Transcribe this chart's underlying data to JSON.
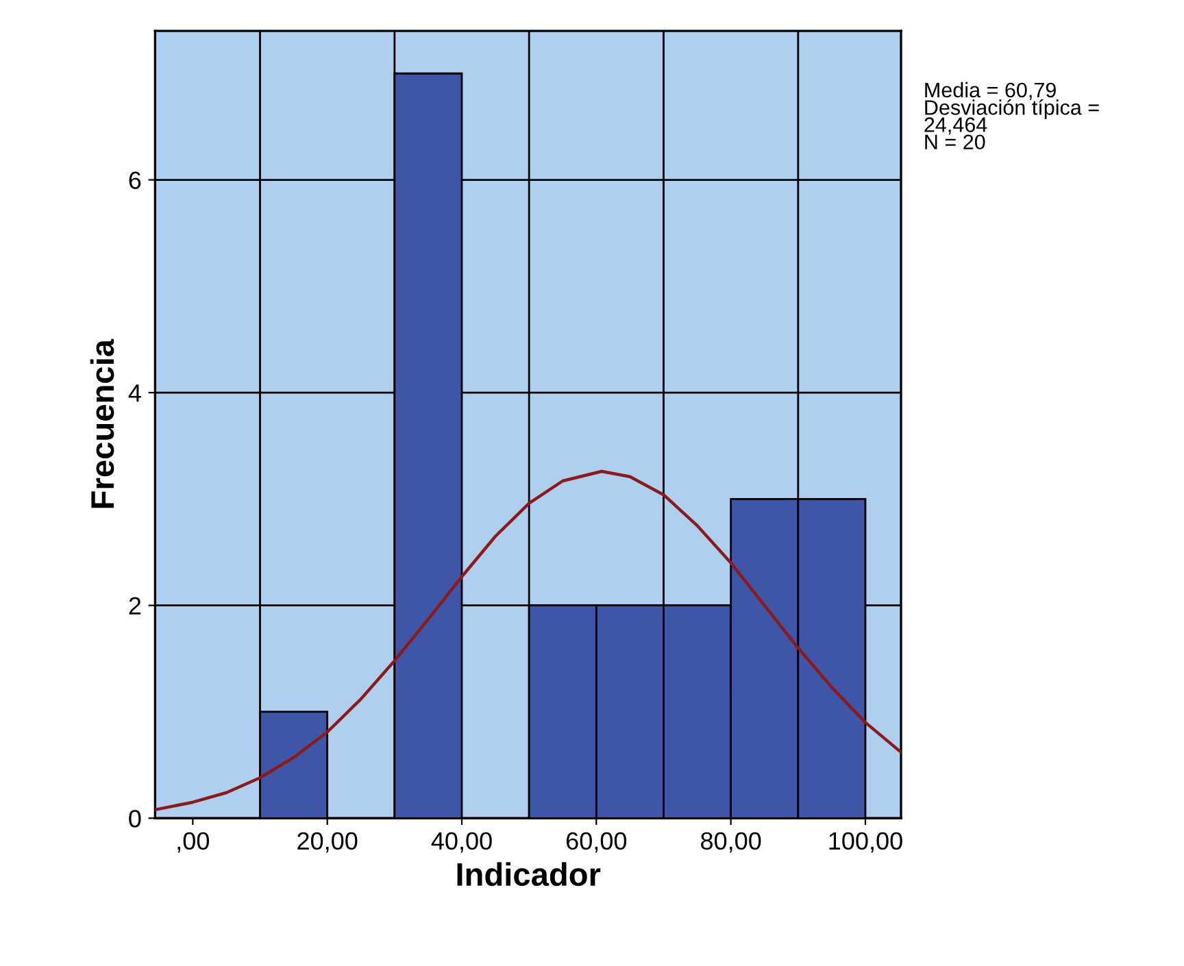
{
  "chart_data": {
    "type": "histogram",
    "xlabel": "Indicador",
    "ylabel": "Frecuencia",
    "bins": [
      0,
      10,
      20,
      30,
      40,
      50,
      60,
      70,
      80,
      90,
      100
    ],
    "values": [
      0,
      1,
      0,
      7,
      0,
      2,
      2,
      2,
      3,
      3
    ],
    "color": "#3f56a8",
    "series": [
      {
        "type": "line",
        "color": "#8b1a1a",
        "x": [
          -5.6,
          0,
          5,
          10,
          15,
          20,
          25,
          30,
          35,
          40,
          45,
          50,
          55,
          60.79,
          65,
          70,
          75,
          80,
          85,
          90,
          95,
          100,
          105.3
        ],
        "values": [
          0.08,
          0.15,
          0.24,
          0.38,
          0.57,
          0.81,
          1.12,
          1.48,
          1.87,
          2.27,
          2.65,
          2.96,
          3.17,
          3.26,
          3.21,
          3.04,
          2.75,
          2.4,
          2.0,
          1.6,
          1.23,
          0.9,
          0.62
        ]
      }
    ],
    "xlim": [
      -5.6,
      105.3
    ],
    "ylim": [
      0,
      7.4
    ],
    "xticks": [
      {
        "value": 0,
        "label": ",00"
      },
      {
        "value": 10,
        "label": null
      },
      {
        "value": 20,
        "label": "20,00"
      },
      {
        "value": 30,
        "label": null
      },
      {
        "value": 40,
        "label": "40,00"
      },
      {
        "value": 50,
        "label": null
      },
      {
        "value": 60,
        "label": "60,00"
      },
      {
        "value": 70,
        "label": null
      },
      {
        "value": 80,
        "label": "80,00"
      },
      {
        "value": 90,
        "label": null
      },
      {
        "value": 100,
        "label": "100,00"
      }
    ],
    "yticks": [
      0,
      2,
      4,
      6
    ],
    "grid": true,
    "annotations": [
      "Media = 60,79\nDesviación típica =\n24,464\nN = 20"
    ]
  }
}
